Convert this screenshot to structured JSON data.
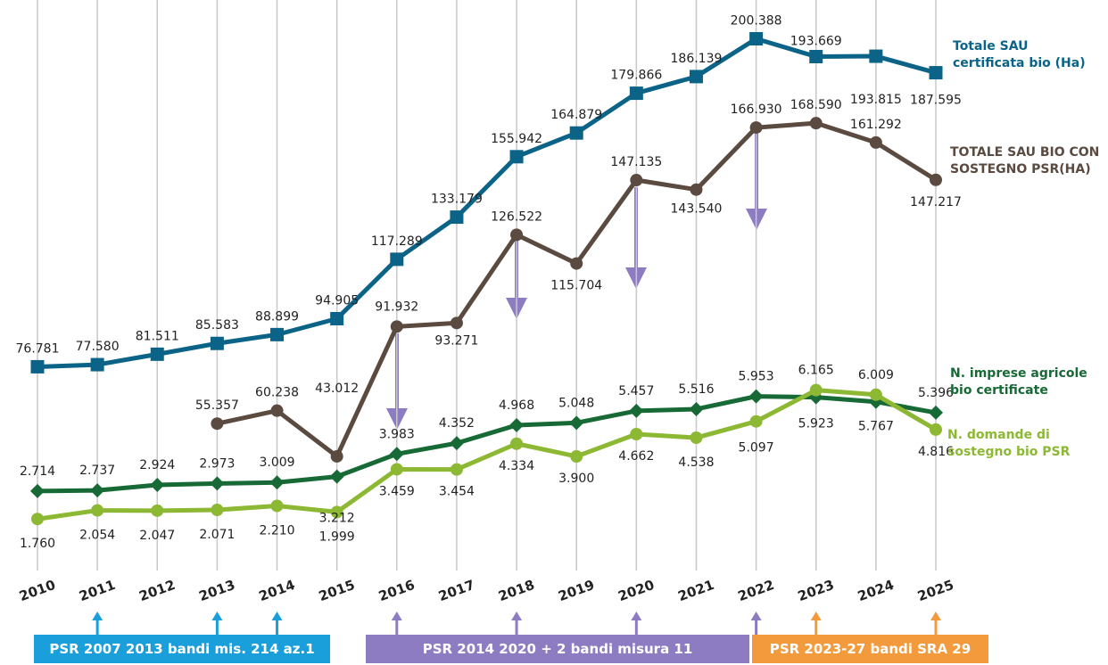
{
  "chart_data": {
    "type": "line",
    "categories": [
      "2010",
      "2011",
      "2012",
      "2013",
      "2014",
      "2015",
      "2016",
      "2017",
      "2018",
      "2019",
      "2020",
      "2021",
      "2022",
      "2023",
      "2024",
      "2025"
    ],
    "ylim": [
      0,
      215000
    ],
    "y2lim": [
      0,
      19500
    ],
    "series": [
      {
        "name": "Totale SAU certificata bio (Ha)",
        "color": "#0b6488",
        "marker": "square",
        "values": [
          76781,
          77580,
          81511,
          85583,
          88899,
          94905,
          117289,
          133179,
          155942,
          164879,
          179866,
          186139,
          200388,
          193669,
          193815,
          187595
        ],
        "value_labels": [
          "76.781",
          "77.580",
          "81.511",
          "85.583",
          "88.899",
          "94.905",
          "117.289",
          "133.179",
          "155.942",
          "164.879",
          "179.866",
          "186.139",
          "200.388",
          "193.669",
          "193.815",
          "187.595"
        ]
      },
      {
        "name": "TOTALE SAU BIO CON SOSTEGNO  PSR(HA)",
        "color": "#5a4a40",
        "marker": "circle",
        "values": [
          null,
          null,
          null,
          55357,
          60238,
          43012,
          91932,
          93271,
          126522,
          115704,
          147135,
          143540,
          166930,
          168590,
          161292,
          147217
        ],
        "value_labels": [
          null,
          null,
          null,
          "55.357",
          "60.238",
          "43.012",
          "91.932",
          "93.271",
          "126.522",
          "115.704",
          "147.135",
          "143.540",
          "166.930",
          "168.590",
          "161.292",
          "147.217"
        ]
      },
      {
        "name": "N. imprese agricole bio certificate",
        "color": "#176a35",
        "marker": "diamond",
        "axis": "y2",
        "values": [
          2714,
          2737,
          2924,
          2973,
          3009,
          3212,
          3983,
          4352,
          4968,
          5048,
          5457,
          5516,
          5953,
          5923,
          5767,
          5396
        ],
        "value_labels": [
          "2.714",
          "2.737",
          "2.924",
          "2.973",
          "3.009",
          "3.212",
          "3.983",
          "4.352",
          "4.968",
          "5.048",
          "5.457",
          "5.516",
          "5.953",
          "5.923",
          "5.767",
          "5.396"
        ]
      },
      {
        "name": "N. domande di sostegno bio PSR",
        "color": "#8db834",
        "marker": "circle",
        "axis": "y2",
        "values": [
          1760,
          2054,
          2047,
          2071,
          2210,
          1999,
          3459,
          3454,
          4334,
          3900,
          4662,
          4538,
          5097,
          6165,
          6009,
          4816
        ],
        "value_labels": [
          "1.760",
          "2.054",
          "2.047",
          "2.071",
          "2.210",
          "1.999",
          "3.459",
          "3.454",
          "4.334",
          "3.900",
          "4.662",
          "4.538",
          "5.097",
          "6.165",
          "6.009",
          "4.816"
        ]
      }
    ],
    "programs": [
      {
        "label": "PSR 2007 2013 bandi mis. 214 az.1",
        "color": "#1a9fdb"
      },
      {
        "label": "PSR 2014  2020 + 2 bandi misura 11",
        "color": "#8e7cc3"
      },
      {
        "label": "PSR 2023-27 bandi SRA 29",
        "color": "#f39a3d"
      }
    ]
  }
}
